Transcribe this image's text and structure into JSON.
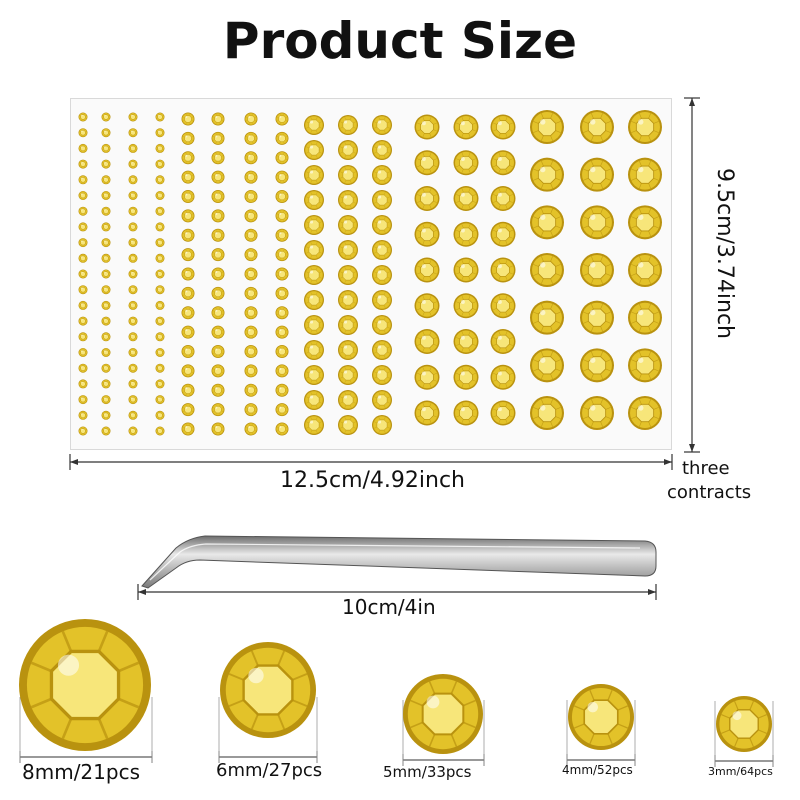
{
  "title": "Product Size",
  "sheet": {
    "width_label": "12.5cm/4.92inch",
    "height_label": "9.5cm/3.74inch",
    "side_note_line1": "three",
    "side_note_line2": "contracts"
  },
  "tweezers": {
    "length_label": "10cm/4in"
  },
  "sizes": [
    {
      "label": "8mm/21pcs"
    },
    {
      "label": "6mm/27pcs"
    },
    {
      "label": "5mm/33pcs"
    },
    {
      "label": "4mm/52pcs"
    },
    {
      "label": "3mm/64pcs"
    }
  ],
  "colors": {
    "gem_base": "#e3c229",
    "gem_light": "#f7e67a",
    "gem_dark": "#b9920f",
    "line": "#333333"
  }
}
